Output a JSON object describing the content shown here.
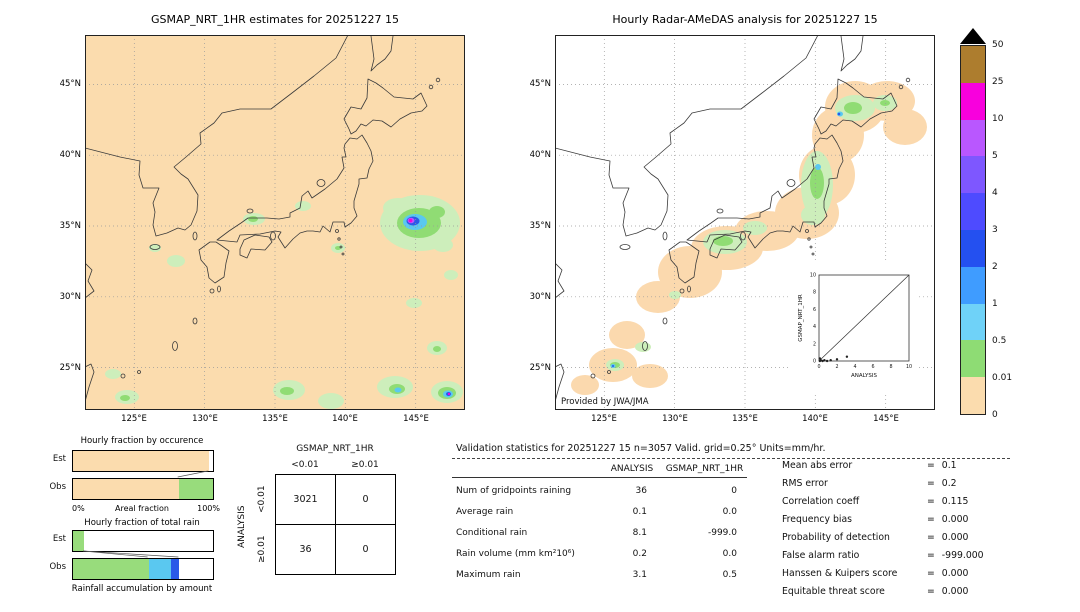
{
  "chart_data": [
    {
      "id": "gsmap_map",
      "type": "map",
      "title": "GSMAP_NRT_1HR estimates for 20251227 15",
      "lat_ticks": [
        "45°N",
        "40°N",
        "35°N",
        "30°N",
        "25°N"
      ],
      "lon_ticks": [
        "125°E",
        "130°E",
        "135°E",
        "140°E",
        "145°E"
      ],
      "background": "#fbdcae",
      "units": "mm/hr",
      "description": "Rain cells east of Honshu near 144-146E 33-35N with heavy core above 10 mm/hr, scattered light rain cells south of 26N, small light-rain patches over western Honshu and west of Kyushu"
    },
    {
      "id": "radar_amedas_map",
      "type": "map",
      "title": "Hourly Radar-AMeDAS analysis for 20251227 15",
      "credit": "Provided by JWA/JMA",
      "lat_ticks": [
        "45°N",
        "40°N",
        "35°N",
        "30°N",
        "25°N"
      ],
      "lon_ticks": [
        "125°E",
        "130°E",
        "135°E",
        "140°E",
        "145°E"
      ],
      "background": "#ffffff",
      "units": "mm/hr",
      "description": "Band of very light rain below 0.5 mm/hr along the Pacific side of Japan from Okinawa to eastern Hokkaido, light rain cores over Shikoku, Tohoku, Hokkaido and near Okinawa"
    },
    {
      "id": "occurrence_chart",
      "type": "bar",
      "title": "Hourly fraction by occurence",
      "xlabel": "Areal fraction",
      "x_min_label": "0%",
      "x_max_label": "100%",
      "categories": [
        "Est",
        "Obs"
      ],
      "est_segments": [
        {
          "frac": 0.97,
          "color": "#fbdcae"
        },
        {
          "frac": 0.03,
          "color": "#ffffff"
        }
      ],
      "obs_segments": [
        {
          "frac": 0.755,
          "color": "#fbdcae"
        },
        {
          "frac": 0.245,
          "color": "#98dc7c"
        }
      ]
    },
    {
      "id": "totalrain_chart",
      "type": "bar",
      "title": "Hourly fraction of total rain",
      "xlabel": "Rainfall accumulation by amount",
      "categories": [
        "Est",
        "Obs"
      ],
      "est_segments": [
        {
          "frac": 0.08,
          "color": "#98dc7c"
        },
        {
          "frac": 0.92,
          "color": "#ffffff"
        }
      ],
      "obs_segments": [
        {
          "frac": 0.54,
          "color": "#98dc7c"
        },
        {
          "frac": 0.16,
          "color": "#5ac8f0"
        },
        {
          "frac": 0.06,
          "color": "#2a5ae8"
        },
        {
          "frac": 0.24,
          "color": "#ffffff"
        }
      ]
    },
    {
      "id": "inset_scatter",
      "type": "scatter",
      "xlabel": "ANALYSIS",
      "ylabel": "GSMAP_NRT_1HR",
      "xlim": [
        0,
        10
      ],
      "ylim": [
        0,
        10
      ],
      "tick_labels": [
        "0",
        "2",
        "4",
        "6",
        "8",
        "10"
      ],
      "points": [
        [
          0.1,
          0
        ],
        [
          0.2,
          0.1
        ],
        [
          0.4,
          0
        ],
        [
          0.6,
          0.1
        ],
        [
          0.9,
          0
        ],
        [
          1.3,
          0.1
        ],
        [
          2.0,
          0.2
        ],
        [
          3.1,
          0.5
        ],
        [
          0.1,
          0.3
        ]
      ],
      "ref_line": [
        [
          0,
          0
        ],
        [
          10,
          10
        ]
      ]
    },
    {
      "id": "contingency_table",
      "type": "table",
      "title": "GSMAP_NRT_1HR",
      "row_axis": "ANALYSIS",
      "col_headers": [
        "<0.01",
        "≥0.01"
      ],
      "row_headers": [
        "<0.01",
        "≥0.01"
      ],
      "rows": [
        [
          "3021",
          "0"
        ],
        [
          "36",
          "0"
        ]
      ]
    },
    {
      "id": "validation_table",
      "type": "table",
      "title": "Validation statistics for 20251227 15  n=3057 Valid. grid=0.25° Units=mm/hr.",
      "col_headers": [
        "ANALYSIS",
        "GSMAP_NRT_1HR"
      ],
      "rows": [
        {
          "label": "Num of gridpoints raining",
          "analysis": "36",
          "gsmap": "0"
        },
        {
          "label": "Average rain",
          "analysis": "0.1",
          "gsmap": "0.0"
        },
        {
          "label": "Conditional rain",
          "analysis": "8.1",
          "gsmap": "-999.0"
        },
        {
          "label": "Rain volume (mm km²10⁶)",
          "analysis": "0.2",
          "gsmap": "0.0"
        },
        {
          "label": "Maximum rain",
          "analysis": "3.1",
          "gsmap": "0.5"
        }
      ]
    },
    {
      "id": "summary_stats",
      "type": "table",
      "eq": "=",
      "rows": [
        {
          "label": "Mean abs error",
          "value": "0.1"
        },
        {
          "label": "RMS error",
          "value": "0.2"
        },
        {
          "label": "Correlation coeff",
          "value": "0.115"
        },
        {
          "label": "Frequency bias",
          "value": "0.000"
        },
        {
          "label": "Probability of detection",
          "value": "0.000"
        },
        {
          "label": "False alarm ratio",
          "value": "-999.000"
        },
        {
          "label": "Hanssen & Kuipers score",
          "value": "0.000"
        },
        {
          "label": "Equitable threat score",
          "value": "0.000"
        }
      ]
    }
  ],
  "colorbar": {
    "overflow_color": "#000000",
    "tick_labels": [
      "50",
      "25",
      "10",
      "5",
      "4",
      "3",
      "2",
      "1",
      "0.5",
      "0.01",
      "0"
    ],
    "segment_colors": [
      "#ad7d2e",
      "#f800dd",
      "#b957ff",
      "#7e57ff",
      "#4e4bff",
      "#2450f0",
      "#3f9cff",
      "#6fd2f8",
      "#8edc74",
      "#fbdcae"
    ]
  },
  "palette": {
    "pale_green": "#cdeebb",
    "green": "#90dc74",
    "cyan": "#5ac8f0",
    "blue": "#2a5ae8",
    "violet": "#b957ff",
    "magenta": "#f400dc",
    "peach": "#fbdcae"
  }
}
